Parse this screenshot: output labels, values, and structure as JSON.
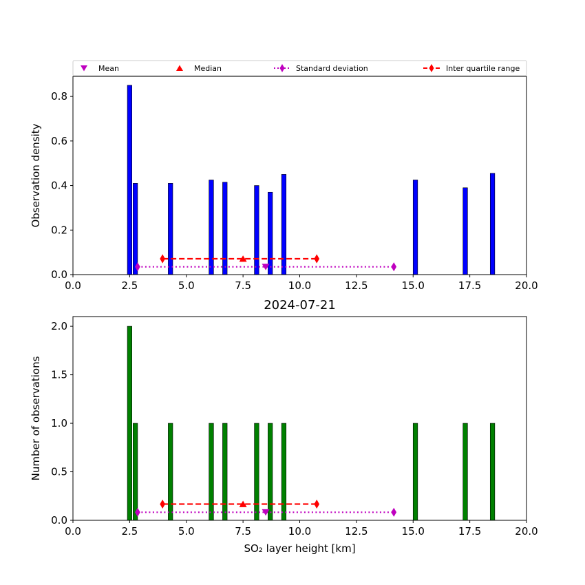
{
  "chart_data": [
    {
      "type": "bar",
      "title": "",
      "xlabel": "",
      "ylabel": "Observation density",
      "xlim": [
        0,
        20
      ],
      "ylim": [
        0,
        0.89
      ],
      "xticks": [
        "0.0",
        "2.5",
        "5.0",
        "7.5",
        "10.0",
        "12.5",
        "15.0",
        "17.5",
        "20.0"
      ],
      "yticks": [
        "0.0",
        "0.2",
        "0.4",
        "0.6",
        "0.8"
      ],
      "bar_color": "#0000ff",
      "bar_width": 0.2,
      "bars": [
        {
          "x": 2.5,
          "value": 0.85
        },
        {
          "x": 2.75,
          "value": 0.41
        },
        {
          "x": 4.3,
          "value": 0.41
        },
        {
          "x": 6.1,
          "value": 0.425
        },
        {
          "x": 6.7,
          "value": 0.415
        },
        {
          "x": 8.1,
          "value": 0.4
        },
        {
          "x": 8.7,
          "value": 0.37
        },
        {
          "x": 9.3,
          "value": 0.45
        },
        {
          "x": 15.1,
          "value": 0.425
        },
        {
          "x": 17.3,
          "value": 0.39
        },
        {
          "x": 18.5,
          "value": 0.455
        }
      ],
      "stats": {
        "mean": {
          "x": 8.5,
          "y": 0.035
        },
        "median": {
          "x": 7.5,
          "y": 0.071
        },
        "std": {
          "x": [
            2.85,
            14.15
          ],
          "y": 0.035
        },
        "iqr": {
          "x": [
            3.95,
            10.75
          ],
          "y": 0.071
        }
      },
      "legend": {
        "placement": "top",
        "entries": [
          {
            "label": "Mean",
            "marker": "triangle-down",
            "color": "#bf00bf"
          },
          {
            "label": "Median",
            "marker": "triangle-up",
            "color": "#ff0000"
          },
          {
            "label": "Standard deviation",
            "marker": "diamond-dotted",
            "color": "#bf00bf"
          },
          {
            "label": "Inter quartile range",
            "marker": "diamond-dashed",
            "color": "#ff0000"
          }
        ]
      }
    },
    {
      "type": "bar",
      "title": "2024-07-21",
      "xlabel": "SO₂ layer height [km]",
      "ylabel": "Number of observations",
      "xlim": [
        0,
        20
      ],
      "ylim": [
        0,
        2.1
      ],
      "xticks": [
        "0.0",
        "2.5",
        "5.0",
        "7.5",
        "10.0",
        "12.5",
        "15.0",
        "17.5",
        "20.0"
      ],
      "yticks": [
        "0.0",
        "0.5",
        "1.0",
        "1.5",
        "2.0"
      ],
      "bar_color": "#008000",
      "bar_width": 0.2,
      "bars": [
        {
          "x": 2.5,
          "value": 2
        },
        {
          "x": 2.75,
          "value": 1
        },
        {
          "x": 4.3,
          "value": 1
        },
        {
          "x": 6.1,
          "value": 1
        },
        {
          "x": 6.7,
          "value": 1
        },
        {
          "x": 8.1,
          "value": 1
        },
        {
          "x": 8.7,
          "value": 1
        },
        {
          "x": 9.3,
          "value": 1
        },
        {
          "x": 15.1,
          "value": 1
        },
        {
          "x": 17.3,
          "value": 1
        },
        {
          "x": 18.5,
          "value": 1
        }
      ],
      "stats": {
        "mean": {
          "x": 8.5,
          "y": 0.083
        },
        "median": {
          "x": 7.5,
          "y": 0.167
        },
        "std": {
          "x": [
            2.85,
            14.15
          ],
          "y": 0.083
        },
        "iqr": {
          "x": [
            3.95,
            10.75
          ],
          "y": 0.167
        }
      }
    }
  ]
}
